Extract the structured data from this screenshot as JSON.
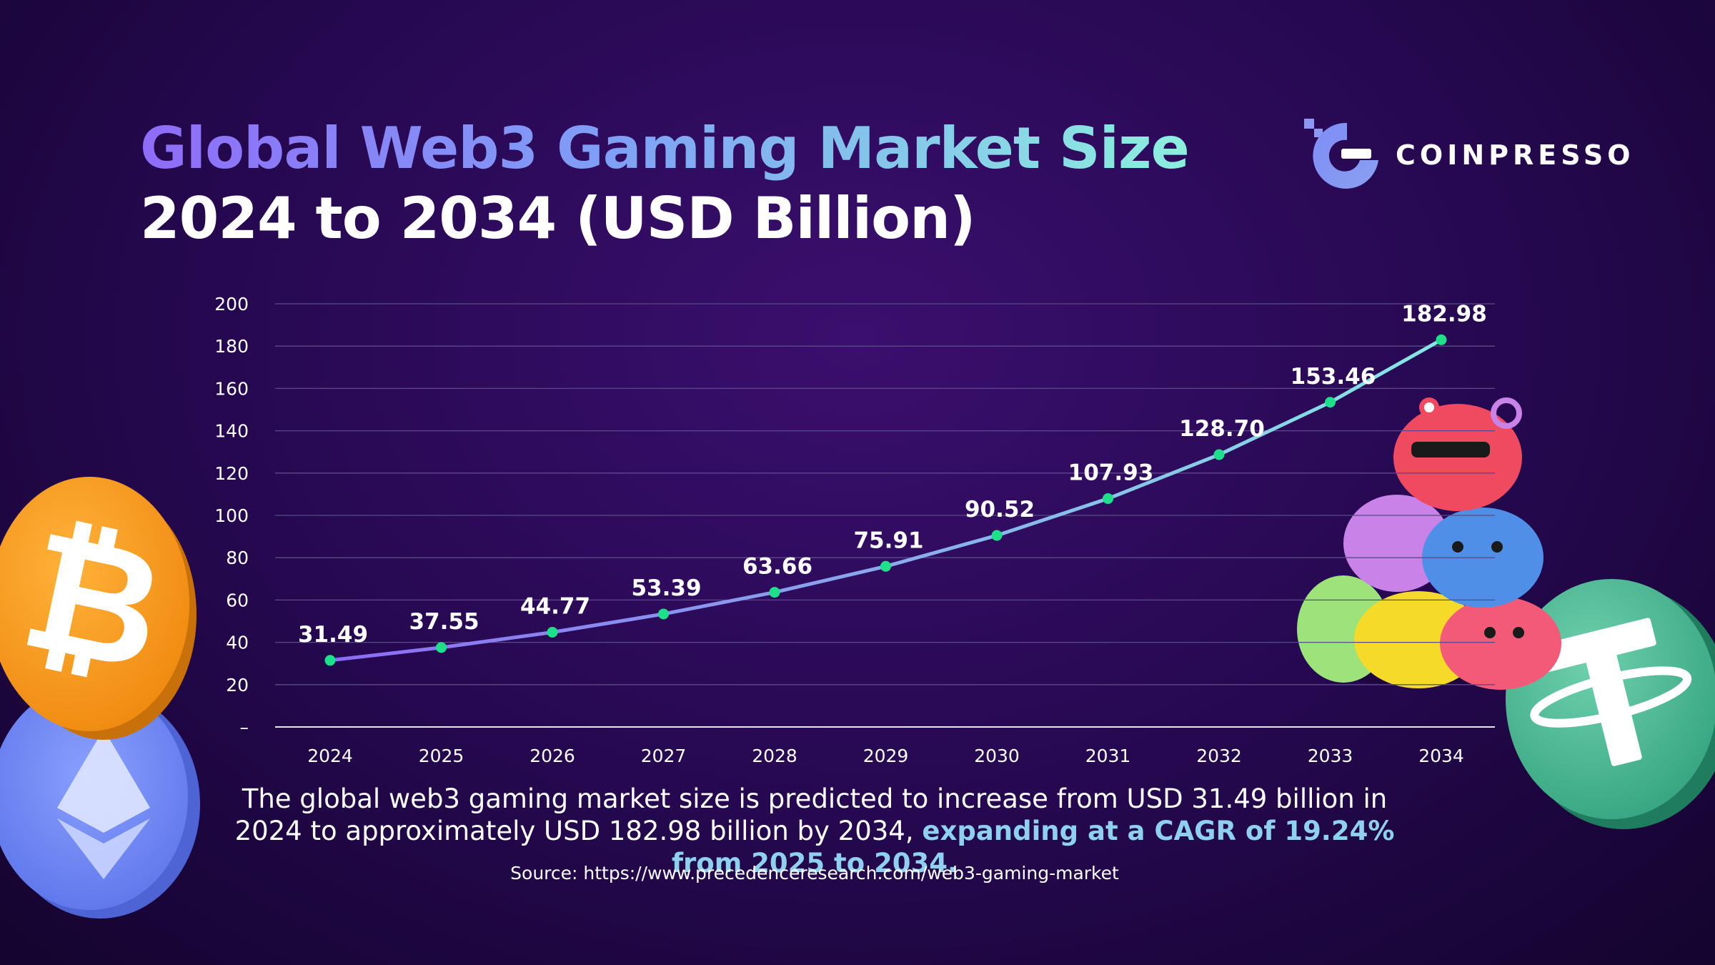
{
  "title": {
    "line1": "Global Web3 Gaming Market Size",
    "line2": "2024 to 2034 (USD Billion)"
  },
  "brand": {
    "name": "COINPRESSO",
    "icon": "coinpresso-logo-icon"
  },
  "chart_data": {
    "type": "line",
    "categories": [
      "2024",
      "2025",
      "2026",
      "2027",
      "2028",
      "2029",
      "2030",
      "2031",
      "2032",
      "2033",
      "2034"
    ],
    "series": [
      {
        "values": [
          31.49,
          37.55,
          44.77,
          53.39,
          63.66,
          75.91,
          90.52,
          107.93,
          128.7,
          153.46,
          182.98
        ]
      }
    ],
    "data_labels": [
      "31.49",
      "37.55",
      "44.77",
      "53.39",
      "63.66",
      "75.91",
      "90.52",
      "107.93",
      "128.70",
      "153.46",
      "182.98"
    ],
    "y_ticks": [
      0,
      20,
      40,
      60,
      80,
      100,
      120,
      140,
      160,
      180,
      200
    ],
    "y_tick_labels": [
      "–",
      "20",
      "40",
      "60",
      "80",
      "100",
      "120",
      "140",
      "160",
      "180",
      "200"
    ],
    "ylim": [
      0,
      200
    ],
    "grid": true,
    "line_gradient": [
      "#8c6cf5",
      "#86e8e4"
    ],
    "point_color": "#1fe08a"
  },
  "caption": {
    "text": "The global web3 gaming market size is predicted to increase from USD 31.49 billion in 2024 to approximately USD 182.98 billion by 2034, ",
    "highlight": "expanding at a CAGR of 19.24% from 2025 to 2034."
  },
  "source": "Source: https://www.precedenceresearch.com/web3-gaming-market",
  "decorations": {
    "left_coins": [
      "bitcoin-coin-icon",
      "ethereum-coin-icon"
    ],
    "right_coin": "tether-coin-icon",
    "characters": "axie-characters-illustration",
    "colors": {
      "bitcoin": "#f7931a",
      "ethereum": "#627eea",
      "tether": "#26a17b"
    }
  }
}
